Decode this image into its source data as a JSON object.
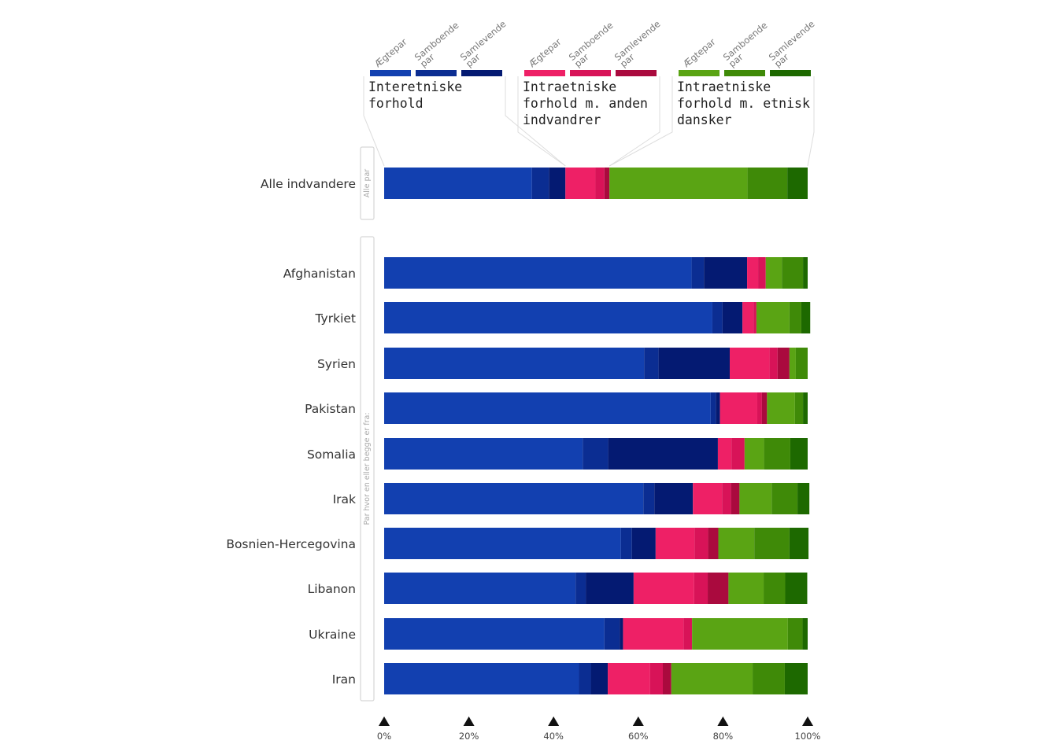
{
  "chart_data": {
    "type": "bar",
    "orientation": "horizontal",
    "stacked": true,
    "normalized": true,
    "xlim": [
      0,
      100
    ],
    "x_ticks": [
      0,
      20,
      40,
      60,
      80,
      100
    ],
    "x_tick_labels": [
      "0%",
      "20%",
      "40%",
      "60%",
      "80%",
      "100%"
    ],
    "grid": false,
    "legend_position": "top",
    "groups": [
      {
        "title_lines": [
          "Interetniske",
          "forhold"
        ]
      },
      {
        "title_lines": [
          "Intraetniske",
          "forhold m. anden",
          "indvandrer"
        ]
      },
      {
        "title_lines": [
          "Intraetniske",
          "forhold m. etnisk",
          "dansker"
        ]
      }
    ],
    "series": [
      {
        "name": "Ægtepar",
        "label_lines": [
          "Ægtepar"
        ],
        "group": 0,
        "color": "#1240b0"
      },
      {
        "name": "Samboende par",
        "label_lines": [
          "Samboende",
          "par"
        ],
        "group": 0,
        "color": "#0b2d92"
      },
      {
        "name": "Samlevende par",
        "label_lines": [
          "Samlevende",
          "par"
        ],
        "group": 0,
        "color": "#041a72"
      },
      {
        "name": "Ægtepar",
        "label_lines": [
          "Ægtepar"
        ],
        "group": 1,
        "color": "#ee2066"
      },
      {
        "name": "Samboende par",
        "label_lines": [
          "Samboende",
          "par"
        ],
        "group": 1,
        "color": "#d81358"
      },
      {
        "name": "Samlevende par",
        "label_lines": [
          "Samlevende",
          "par"
        ],
        "group": 1,
        "color": "#aa0a3e"
      },
      {
        "name": "Ægtepar",
        "label_lines": [
          "Ægtepar"
        ],
        "group": 2,
        "color": "#5aa414"
      },
      {
        "name": "Samboende par",
        "label_lines": [
          "Samboende",
          "par"
        ],
        "group": 2,
        "color": "#3f8a08"
      },
      {
        "name": "Samlevende par",
        "label_lines": [
          "Samlevende",
          "par"
        ],
        "group": 2,
        "color": "#1d6900"
      }
    ],
    "sections": [
      {
        "label": "Alle par",
        "categories": [
          "Alle indvandere"
        ]
      },
      {
        "label": "Par hvor en eller begge er fra:",
        "categories": [
          "Afghanistan",
          "Tyrkiet",
          "Syrien",
          "Pakistan",
          "Somalia",
          "Irak",
          "Bosnien-Hercegovina",
          "Libanon",
          "Ukraine",
          "Iran"
        ]
      }
    ],
    "categories": [
      "Alle indvandere",
      "Afghanistan",
      "Tyrkiet",
      "Syrien",
      "Pakistan",
      "Somalia",
      "Irak",
      "Bosnien-Hercegovina",
      "Libanon",
      "Ukraine",
      "Iran"
    ],
    "values": [
      [
        34.9,
        4.0,
        3.9,
        7.1,
        2.1,
        1.2,
        32.6,
        9.4,
        4.8
      ],
      [
        72.6,
        2.9,
        10.2,
        2.6,
        1.8,
        0.0,
        3.8,
        5.0,
        1.1
      ],
      [
        77.5,
        2.4,
        4.7,
        2.6,
        0.7,
        0.0,
        7.8,
        2.8,
        2.1
      ],
      [
        61.4,
        3.4,
        16.8,
        9.4,
        1.9,
        2.8,
        1.5,
        2.8,
        0.0
      ],
      [
        77.1,
        1.2,
        1.0,
        8.8,
        1.1,
        1.2,
        6.6,
        1.9,
        1.1
      ],
      [
        46.9,
        6.0,
        25.9,
        3.2,
        3.1,
        0.0,
        4.6,
        6.2,
        4.1
      ],
      [
        61.2,
        2.6,
        9.1,
        6.9,
        2.1,
        2.0,
        7.6,
        6.1,
        2.8
      ],
      [
        55.9,
        2.6,
        5.6,
        9.2,
        3.2,
        2.4,
        8.5,
        8.3,
        4.5
      ],
      [
        45.2,
        2.4,
        11.3,
        14.3,
        3.2,
        4.9,
        8.3,
        5.1,
        5.2
      ],
      [
        52.0,
        3.6,
        0.8,
        14.3,
        2.0,
        0.0,
        22.6,
        3.5,
        1.2
      ],
      [
        46.0,
        2.8,
        4.0,
        10.0,
        3.0,
        2.0,
        19.2,
        7.6,
        5.4
      ]
    ]
  }
}
